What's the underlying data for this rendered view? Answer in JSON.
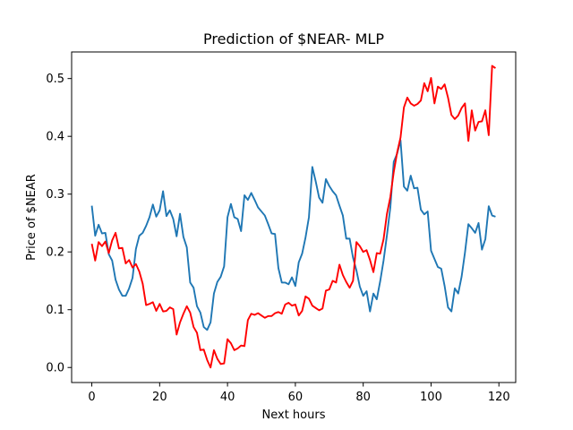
{
  "chart_data": {
    "type": "line",
    "title": "Prediction of $NEAR- MLP",
    "xlabel": "Next hours",
    "ylabel": "Price of $NEAR",
    "xlim": [
      -5.95,
      124.95
    ],
    "ylim": [
      -0.026,
      0.546
    ],
    "xticks": [
      0,
      20,
      40,
      60,
      80,
      100,
      120
    ],
    "xtick_labels": [
      "0",
      "20",
      "40",
      "60",
      "80",
      "100",
      "120"
    ],
    "yticks": [
      0.0,
      0.1,
      0.2,
      0.3,
      0.4,
      0.5
    ],
    "ytick_labels": [
      "0.0",
      "0.1",
      "0.2",
      "0.3",
      "0.4",
      "0.5"
    ],
    "grid": false,
    "legend": "none",
    "series": [
      {
        "color": "#1f77b4",
        "x": [
          0,
          1,
          2,
          3,
          4,
          5,
          6,
          7,
          8,
          9,
          10,
          11,
          12,
          13,
          14,
          15,
          16,
          17,
          18,
          19,
          20,
          21,
          22,
          23,
          24,
          25,
          26,
          27,
          28,
          29,
          30,
          31,
          32,
          33,
          34,
          35,
          36,
          37,
          38,
          39,
          40,
          41,
          42,
          43,
          44,
          45,
          46,
          47,
          48,
          49,
          50,
          51,
          52,
          53,
          54,
          55,
          56,
          57,
          58,
          59,
          60,
          61,
          62,
          63,
          64,
          65,
          66,
          67,
          68,
          69,
          70,
          71,
          72,
          73,
          74,
          75,
          76,
          77,
          78,
          79,
          80,
          81,
          82,
          83,
          84,
          85,
          86,
          87,
          88,
          89,
          90,
          91,
          92,
          93,
          94,
          95,
          96,
          97,
          98,
          99,
          100,
          101,
          102,
          103,
          104,
          105,
          106,
          107,
          108,
          109,
          110,
          111,
          112,
          113,
          114,
          115,
          116,
          117,
          118,
          119
        ],
        "values": [
          0.28,
          0.228,
          0.247,
          0.232,
          0.233,
          0.196,
          0.185,
          0.152,
          0.135,
          0.124,
          0.124,
          0.137,
          0.155,
          0.205,
          0.228,
          0.233,
          0.245,
          0.26,
          0.282,
          0.261,
          0.272,
          0.305,
          0.262,
          0.272,
          0.257,
          0.227,
          0.266,
          0.226,
          0.208,
          0.147,
          0.138,
          0.106,
          0.095,
          0.07,
          0.065,
          0.078,
          0.128,
          0.148,
          0.157,
          0.175,
          0.26,
          0.283,
          0.26,
          0.257,
          0.236,
          0.298,
          0.29,
          0.302,
          0.29,
          0.277,
          0.27,
          0.263,
          0.248,
          0.232,
          0.231,
          0.172,
          0.147,
          0.147,
          0.144,
          0.156,
          0.141,
          0.182,
          0.197,
          0.225,
          0.26,
          0.347,
          0.322,
          0.294,
          0.285,
          0.326,
          0.314,
          0.305,
          0.298,
          0.28,
          0.263,
          0.223,
          0.223,
          0.19,
          0.168,
          0.14,
          0.124,
          0.132,
          0.097,
          0.128,
          0.118,
          0.149,
          0.185,
          0.229,
          0.277,
          0.356,
          0.37,
          0.393,
          0.313,
          0.306,
          0.332,
          0.31,
          0.311,
          0.273,
          0.265,
          0.27,
          0.202,
          0.188,
          0.174,
          0.171,
          0.141,
          0.104,
          0.097,
          0.137,
          0.128,
          0.157,
          0.199,
          0.248,
          0.241,
          0.233,
          0.25,
          0.204,
          0.222,
          0.279,
          0.263,
          0.261
        ]
      },
      {
        "color": "#ff0000",
        "x": [
          0,
          1,
          2,
          3,
          4,
          5,
          6,
          7,
          8,
          9,
          10,
          11,
          12,
          13,
          14,
          15,
          16,
          17,
          18,
          19,
          20,
          21,
          22,
          23,
          24,
          25,
          26,
          27,
          28,
          29,
          30,
          31,
          32,
          33,
          34,
          35,
          36,
          37,
          38,
          39,
          40,
          41,
          42,
          43,
          44,
          45,
          46,
          47,
          48,
          49,
          50,
          51,
          52,
          53,
          54,
          55,
          56,
          57,
          58,
          59,
          60,
          61,
          62,
          63,
          64,
          65,
          66,
          67,
          68,
          69,
          70,
          71,
          72,
          73,
          74,
          75,
          76,
          77,
          78,
          79,
          80,
          81,
          82,
          83,
          84,
          85,
          86,
          87,
          88,
          89,
          90,
          91,
          92,
          93,
          94,
          95,
          96,
          97,
          98,
          99,
          100,
          101,
          102,
          103,
          104,
          105,
          106,
          107,
          108,
          109,
          110,
          111,
          112,
          113,
          114,
          115,
          116,
          117,
          118,
          119
        ],
        "values": [
          0.214,
          0.185,
          0.217,
          0.21,
          0.218,
          0.198,
          0.22,
          0.233,
          0.206,
          0.207,
          0.18,
          0.186,
          0.173,
          0.179,
          0.166,
          0.145,
          0.108,
          0.11,
          0.113,
          0.098,
          0.11,
          0.097,
          0.098,
          0.104,
          0.101,
          0.057,
          0.078,
          0.093,
          0.106,
          0.095,
          0.07,
          0.06,
          0.03,
          0.031,
          0.013,
          0.0,
          0.03,
          0.015,
          0.006,
          0.007,
          0.049,
          0.042,
          0.03,
          0.033,
          0.038,
          0.037,
          0.082,
          0.093,
          0.091,
          0.094,
          0.09,
          0.086,
          0.089,
          0.089,
          0.094,
          0.096,
          0.093,
          0.109,
          0.112,
          0.107,
          0.109,
          0.09,
          0.098,
          0.123,
          0.119,
          0.107,
          0.103,
          0.099,
          0.102,
          0.133,
          0.135,
          0.15,
          0.147,
          0.178,
          0.16,
          0.148,
          0.138,
          0.15,
          0.217,
          0.21,
          0.2,
          0.203,
          0.186,
          0.165,
          0.198,
          0.197,
          0.222,
          0.266,
          0.295,
          0.338,
          0.372,
          0.398,
          0.45,
          0.467,
          0.457,
          0.453,
          0.456,
          0.462,
          0.492,
          0.478,
          0.501,
          0.457,
          0.486,
          0.482,
          0.49,
          0.467,
          0.437,
          0.43,
          0.436,
          0.449,
          0.457,
          0.392,
          0.445,
          0.41,
          0.425,
          0.426,
          0.445,
          0.402,
          0.522,
          0.518
        ]
      }
    ]
  }
}
